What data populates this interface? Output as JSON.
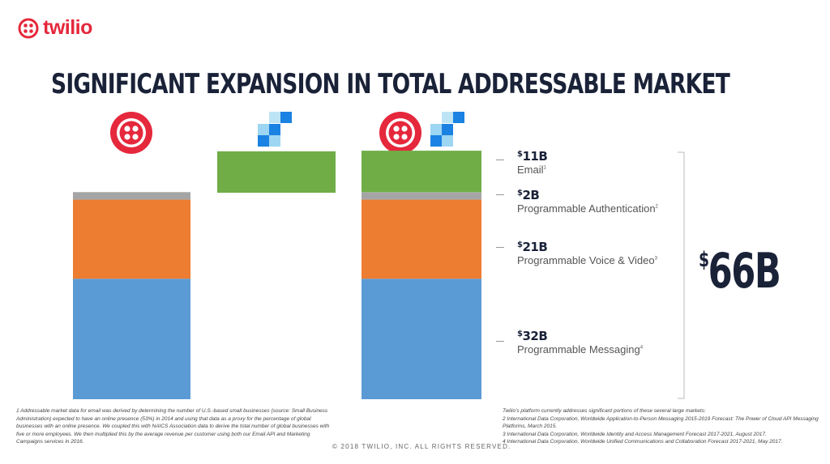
{
  "brand": {
    "logo_text": "twilio",
    "color": "#e5283c"
  },
  "title": "SIGNIFICANT EXPANSION IN TOTAL ADDRESSABLE MARKET",
  "colors": {
    "messaging": "#5b9bd5",
    "voice": "#ed7d31",
    "auth": "#a5a5a5",
    "email": "#70ad47"
  },
  "chart_data": {
    "type": "bar",
    "stacked": true,
    "categories": [
      "Twilio",
      "SendGrid",
      "Twilio + SendGrid"
    ],
    "series": [
      {
        "name": "Programmable Messaging",
        "values": [
          32,
          0,
          32
        ]
      },
      {
        "name": "Programmable Voice & Video",
        "values": [
          21,
          0,
          21
        ]
      },
      {
        "name": "Programmable Authentication",
        "values": [
          2,
          0,
          2
        ]
      },
      {
        "name": "Email",
        "values": [
          0,
          11,
          11
        ]
      }
    ],
    "grid": false,
    "legend": "right"
  },
  "labels": [
    {
      "value": "11B",
      "name": "Email",
      "note": "1"
    },
    {
      "value": "2B",
      "name": "Programmable Authentication",
      "note": "2"
    },
    {
      "value": "21B",
      "name": "Programmable Voice & Video",
      "note": "3"
    },
    {
      "value": "32B",
      "name": "Programmable Messaging",
      "note": "4"
    }
  ],
  "currency": "$",
  "total": "66B",
  "footnote_left": "1 Addressable market data for email was derived by determining the number of U.S.-based small businesses (source: Small Business Administration) expected to have an online presence (53%) in 2014 and using that data as a proxy for the percentage of global businesses with an online presence. We coupled this with NAICS Association data to derive the total number of global businesses with five or more employees. We then multiplied this by the average revenue per customer using both our Email API and Marketing Campaigns services in 2016.",
  "copyright": "© 2018 TWILIO, INC. ALL RIGHTS RESERVED.",
  "footnote_right": [
    "Twilio's platform currently addresses significant portions of these several large markets:",
    "2  International Data Corporation, Worldwide Application-to-Person Messaging 2015-2019 Forecast: The Power of Cloud API Messaging Platforms, March 2015.",
    "3 International Data Corporation, Worldwide Identity and Access Management Forecast 2017-2021, August 2017.",
    "4 International Data Corporation, Worldwide Unified Communications and Collaboration Forecast 2017-2021, May 2017."
  ]
}
